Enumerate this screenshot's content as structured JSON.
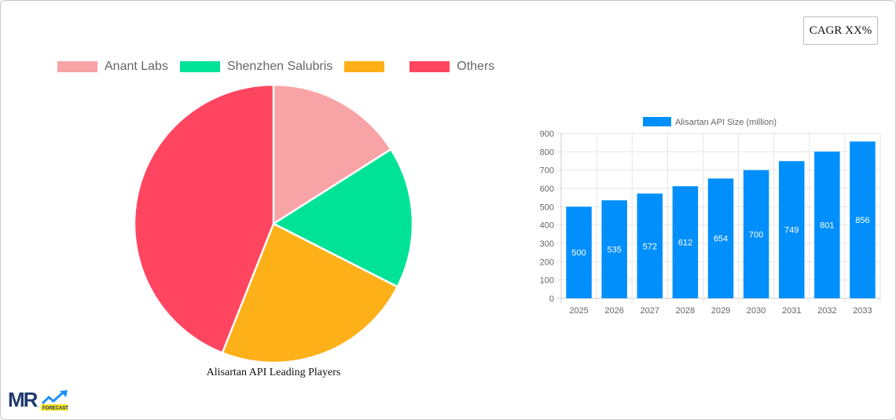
{
  "badge": {
    "cagr_label": "CAGR XX%"
  },
  "pie_legend": [
    {
      "label": "Anant Labs",
      "color": "#F8A3A6"
    },
    {
      "label": "Shenzhen Salubris",
      "color": "#00E396"
    },
    {
      "label": "",
      "color": "#FEB019"
    },
    {
      "label": "Others",
      "color": "#FF4560"
    }
  ],
  "pie_title": "Alisartan API Leading Players",
  "bar_legend": {
    "label": "Alisartan API Size (million)",
    "color": "#008FFB"
  },
  "logo": {
    "text": "MR",
    "subtext": "FORECAST"
  },
  "chart_data": [
    {
      "type": "pie",
      "title": "Alisartan API Leading Players",
      "categories": [
        "Anant Labs",
        "Shenzhen Salubris",
        "",
        "Others"
      ],
      "values": [
        16,
        16.5,
        23.5,
        44
      ],
      "colors": [
        "#F8A3A6",
        "#00E396",
        "#FEB019",
        "#FF4560"
      ],
      "legend_position": "top"
    },
    {
      "type": "bar",
      "title": "",
      "categories": [
        "2025",
        "2026",
        "2027",
        "2028",
        "2029",
        "2030",
        "2031",
        "2032",
        "2033"
      ],
      "series": [
        {
          "name": "Alisartan API Size (million)",
          "values": [
            500,
            535,
            572,
            612,
            654,
            700,
            749,
            801,
            856
          ]
        }
      ],
      "xlabel": "",
      "ylabel": "",
      "ylim": [
        0,
        900
      ],
      "yticks": [
        0,
        100,
        200,
        300,
        400,
        500,
        600,
        700,
        800,
        900
      ],
      "grid": true,
      "legend_position": "top",
      "data_labels": true,
      "color": "#008FFB"
    }
  ]
}
